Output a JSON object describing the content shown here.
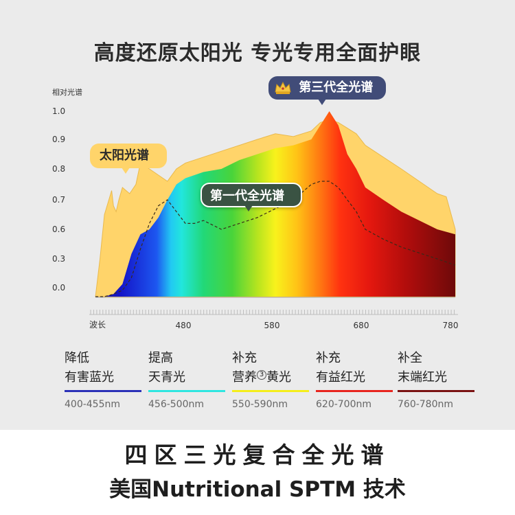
{
  "page": {
    "title": "高度还原太阳光 专光专用全面护眼",
    "footer_line1": "四区三光复合全光谱",
    "footer_line2": "美国Nutritional SPTM 技术"
  },
  "colors": {
    "sun": "#ffd46a",
    "gen1_bubble": "#3a5343",
    "gen3_bubble": "#414c78"
  },
  "chart_data": {
    "type": "area",
    "ylabel": "相对光谱",
    "xlabel": "波长",
    "yticks": [
      "1.0",
      "0.9",
      "0.8",
      "0.7",
      "0.6",
      "0.3",
      "0.0"
    ],
    "xticks": [
      "480",
      "580",
      "680",
      "780"
    ],
    "x_range": [
      380,
      780
    ],
    "series": [
      {
        "name": "太阳光谱",
        "x": [
          380,
          385,
          390,
          398,
          400,
          403,
          406,
          410,
          418,
          425,
          430,
          440,
          450,
          460,
          470,
          480,
          500,
          520,
          540,
          560,
          580,
          600,
          620,
          630,
          640,
          650,
          660,
          670,
          680,
          700,
          720,
          730,
          740,
          750,
          760,
          770,
          780
        ],
        "y": [
          0.0,
          0.3,
          0.65,
          0.73,
          0.68,
          0.66,
          0.7,
          0.74,
          0.72,
          0.75,
          0.82,
          0.8,
          0.78,
          0.76,
          0.8,
          0.82,
          0.84,
          0.86,
          0.88,
          0.9,
          0.92,
          0.91,
          0.93,
          0.96,
          0.97,
          0.96,
          0.94,
          0.92,
          0.88,
          0.84,
          0.8,
          0.78,
          0.76,
          0.74,
          0.72,
          0.71,
          0.6
        ]
      },
      {
        "name": "第三代全光谱",
        "x": [
          380,
          390,
          400,
          410,
          420,
          430,
          440,
          450,
          460,
          470,
          480,
          490,
          500,
          520,
          540,
          560,
          580,
          600,
          620,
          630,
          640,
          650,
          660,
          670,
          680,
          700,
          720,
          740,
          760,
          780
        ],
        "y": [
          0.0,
          0.0,
          0.02,
          0.1,
          0.35,
          0.55,
          0.6,
          0.64,
          0.7,
          0.75,
          0.77,
          0.78,
          0.79,
          0.8,
          0.83,
          0.85,
          0.87,
          0.88,
          0.9,
          0.95,
          1.0,
          0.95,
          0.85,
          0.8,
          0.74,
          0.7,
          0.66,
          0.63,
          0.6,
          0.55
        ]
      },
      {
        "name": "第一代全光谱",
        "x": [
          380,
          390,
          400,
          410,
          420,
          430,
          440,
          450,
          460,
          470,
          480,
          490,
          500,
          520,
          540,
          560,
          580,
          600,
          620,
          630,
          640,
          650,
          660,
          670,
          680,
          700,
          720,
          740,
          760,
          780
        ],
        "y": [
          0.0,
          0.0,
          0.02,
          0.05,
          0.15,
          0.4,
          0.62,
          0.68,
          0.7,
          0.66,
          0.62,
          0.62,
          0.63,
          0.6,
          0.62,
          0.64,
          0.67,
          0.7,
          0.75,
          0.76,
          0.76,
          0.74,
          0.7,
          0.66,
          0.6,
          0.5,
          0.42,
          0.36,
          0.3,
          0.25
        ]
      }
    ]
  },
  "labels": {
    "sun": "太阳光谱",
    "gen1": "第一代全光谱",
    "gen3": "第三代全光谱"
  },
  "bands": [
    {
      "line1": "降低",
      "line2": "有害蓝光",
      "range": "400-455nm",
      "color": "#2b31b8"
    },
    {
      "line1": "提高",
      "line2": "天青光",
      "range": "456-500nm",
      "color": "#2ee6e0"
    },
    {
      "line1": "补充",
      "line2a": "营养",
      "mark": "3",
      "line2b": "黄光",
      "range": "550-590nm",
      "color": "#f5ee1a"
    },
    {
      "line1": "补充",
      "line2": "有益红光",
      "range": "620-700nm",
      "color": "#e8241e"
    },
    {
      "line1": "补全",
      "line2": "末端红光",
      "range": "760-780nm",
      "color": "#7a1212"
    }
  ]
}
